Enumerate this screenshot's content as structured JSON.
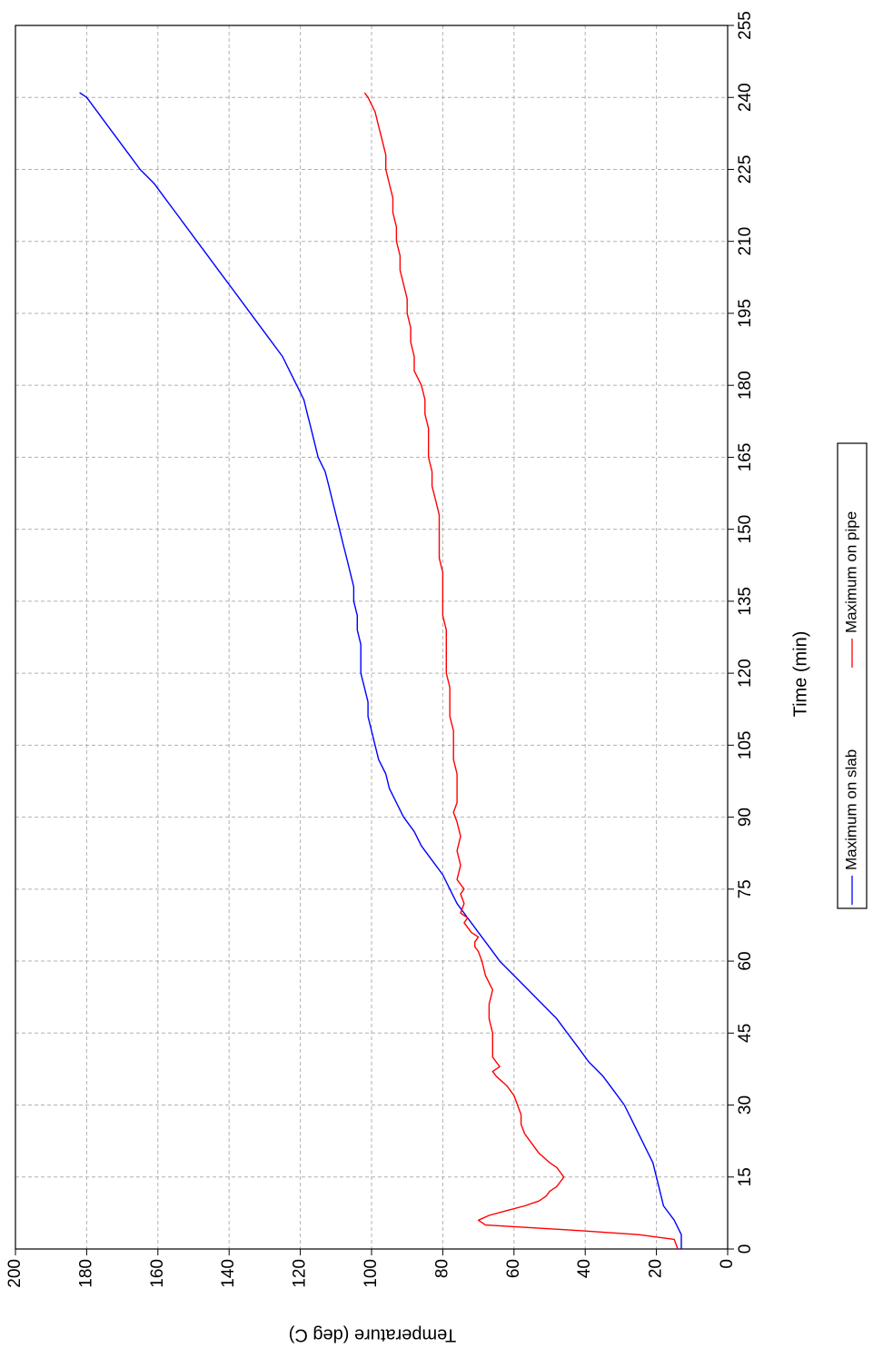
{
  "chart_data": {
    "type": "line",
    "xlabel": "Time (min)",
    "ylabel": "Temperature (deg C)",
    "xlim": [
      0,
      255
    ],
    "ylim": [
      0,
      200
    ],
    "x_ticks": [
      0,
      15,
      30,
      45,
      60,
      75,
      90,
      105,
      120,
      135,
      150,
      165,
      180,
      195,
      210,
      225,
      240,
      255
    ],
    "y_ticks": [
      0,
      20,
      40,
      60,
      80,
      100,
      120,
      140,
      160,
      180,
      200
    ],
    "grid": true,
    "legend_position": "right",
    "series": [
      {
        "name": "Maximum on slab",
        "color": "#0000ff",
        "x": [
          0,
          3,
          6,
          9,
          12,
          15,
          18,
          21,
          24,
          27,
          30,
          33,
          36,
          39,
          42,
          45,
          48,
          51,
          54,
          57,
          60,
          63,
          66,
          69,
          72,
          75,
          78,
          81,
          84,
          87,
          90,
          93,
          96,
          99,
          102,
          105,
          108,
          111,
          114,
          117,
          120,
          123,
          126,
          129,
          132,
          135,
          138,
          141,
          144,
          147,
          150,
          153,
          156,
          159,
          162,
          165,
          168,
          171,
          174,
          177,
          180,
          183,
          186,
          189,
          192,
          195,
          198,
          201,
          204,
          207,
          210,
          213,
          216,
          219,
          222,
          225,
          228,
          231,
          234,
          237,
          240,
          241
        ],
        "y": [
          13,
          13,
          15,
          18,
          19,
          20,
          21,
          23,
          25,
          27,
          29,
          32,
          35,
          39,
          42,
          45,
          48,
          52,
          56,
          60,
          64,
          67,
          70,
          73,
          76,
          78,
          80,
          83,
          86,
          88,
          91,
          93,
          95,
          96,
          98,
          99,
          100,
          101,
          101,
          102,
          103,
          103,
          103,
          104,
          104,
          105,
          105,
          106,
          107,
          108,
          109,
          110,
          111,
          112,
          113,
          115,
          116,
          117,
          118,
          119,
          121,
          123,
          125,
          128,
          131,
          134,
          137,
          140,
          143,
          146,
          149,
          152,
          155,
          158,
          161,
          165,
          168,
          171,
          174,
          177,
          180,
          182
        ]
      },
      {
        "name": "Maximum on pipe",
        "color": "#ff0000",
        "x": [
          0,
          2,
          3,
          4,
          5,
          6,
          7,
          8,
          9,
          10,
          11,
          12,
          13,
          14,
          15,
          16,
          17,
          18,
          20,
          22,
          24,
          26,
          28,
          30,
          32,
          34,
          36,
          37,
          38,
          39,
          40,
          42,
          45,
          48,
          51,
          54,
          57,
          60,
          62,
          63,
          64,
          65,
          66,
          67,
          68,
          69,
          70,
          72,
          74,
          75,
          77,
          80,
          83,
          86,
          89,
          91,
          93,
          96,
          99,
          102,
          105,
          108,
          111,
          114,
          117,
          120,
          123,
          126,
          129,
          132,
          135,
          138,
          141,
          144,
          147,
          150,
          153,
          156,
          159,
          162,
          165,
          168,
          171,
          174,
          177,
          180,
          183,
          186,
          189,
          192,
          195,
          198,
          201,
          204,
          207,
          210,
          213,
          216,
          219,
          222,
          225,
          228,
          231,
          234,
          237,
          240,
          241
        ],
        "y": [
          14,
          15,
          25,
          45,
          68,
          70,
          67,
          62,
          57,
          53,
          51,
          50,
          48,
          47,
          46,
          47,
          48,
          50,
          53,
          55,
          57,
          58,
          58,
          59,
          60,
          62,
          65,
          66,
          64,
          65,
          66,
          66,
          66,
          67,
          67,
          66,
          68,
          69,
          70,
          71,
          71,
          70,
          72,
          73,
          74,
          73,
          75,
          74,
          75,
          74,
          76,
          75,
          76,
          75,
          76,
          77,
          76,
          76,
          76,
          77,
          77,
          77,
          78,
          78,
          78,
          79,
          79,
          79,
          79,
          80,
          80,
          80,
          80,
          81,
          81,
          81,
          81,
          82,
          83,
          83,
          84,
          84,
          84,
          85,
          85,
          86,
          88,
          88,
          89,
          89,
          90,
          90,
          91,
          92,
          92,
          93,
          93,
          94,
          94,
          95,
          96,
          96,
          97,
          98,
          99,
          101,
          102
        ]
      }
    ]
  }
}
